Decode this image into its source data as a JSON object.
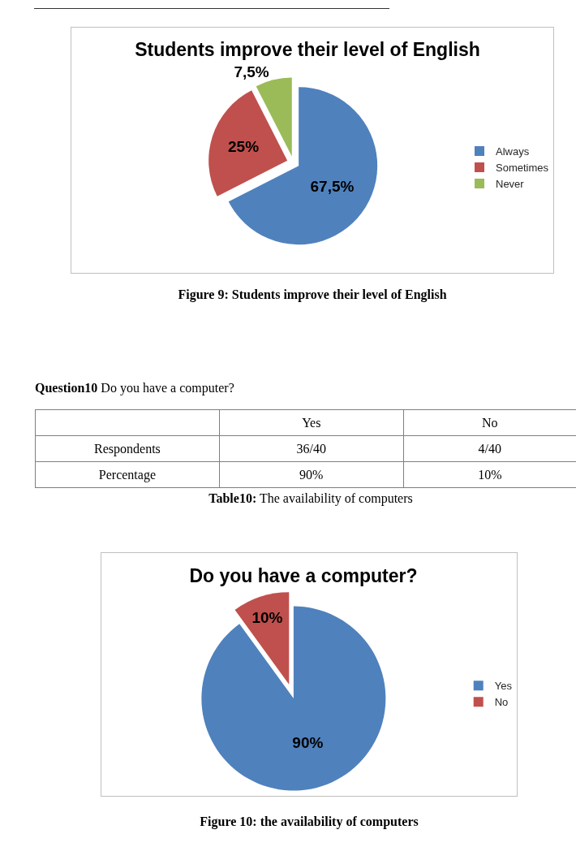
{
  "chart_data": [
    {
      "type": "pie",
      "title": "Students improve their level of English",
      "categories": [
        "Always",
        "Sometimes",
        "Never"
      ],
      "values": [
        67.5,
        25,
        7.5
      ],
      "value_labels": [
        "67,5%",
        "25%",
        "7,5%"
      ],
      "colors": [
        "#4f81bd",
        "#c0504d",
        "#9bbb59"
      ],
      "legend": "right",
      "annotations": [
        "Figure 9: Students improve their level of English"
      ]
    },
    {
      "type": "other",
      "title": "Question10",
      "subtitle": "Do you have a computer?",
      "categories": [
        "Yes",
        "No"
      ],
      "y_categories": [
        "Respondents",
        "Percentage"
      ],
      "cell_labels": [
        [
          "36/40",
          "4/40"
        ],
        [
          "90%",
          "10%"
        ]
      ],
      "annotations": [
        "Table10: The availability of computers"
      ]
    },
    {
      "type": "pie",
      "title": "Do you have a computer?",
      "categories": [
        "Yes",
        "No"
      ],
      "values": [
        90,
        10
      ],
      "value_labels": [
        "90%",
        "10%"
      ],
      "colors": [
        "#4f81bd",
        "#c0504d"
      ],
      "legend": "right",
      "annotations": [
        "Figure 10: the availability of computers"
      ]
    }
  ]
}
